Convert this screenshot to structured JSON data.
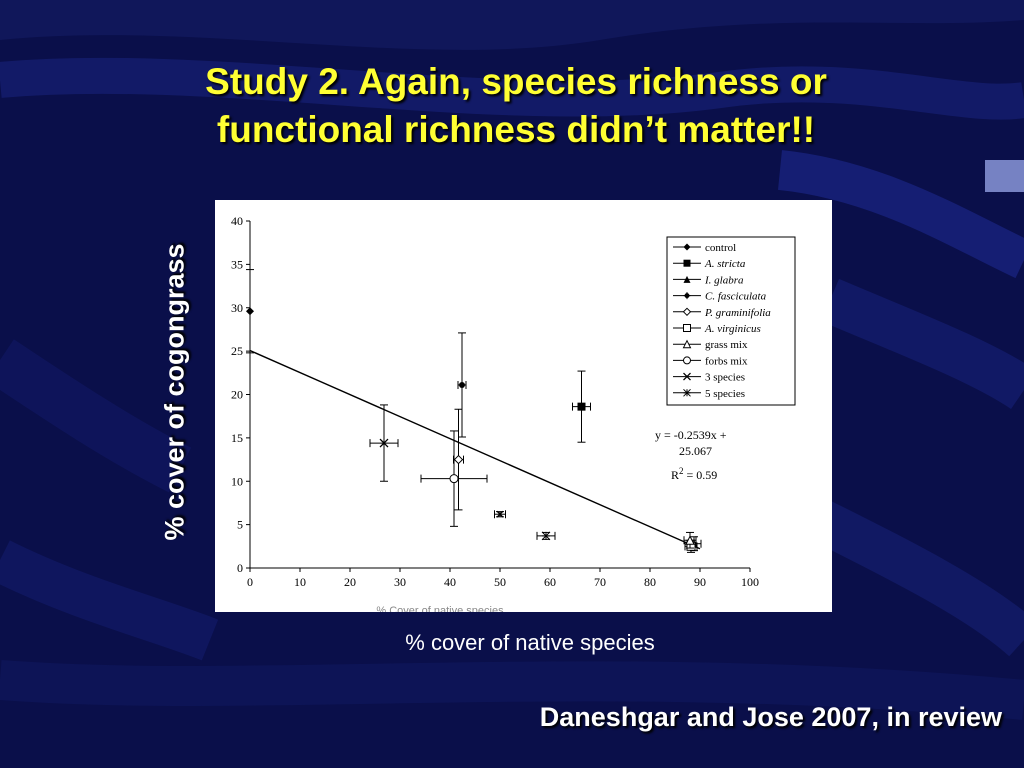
{
  "slide": {
    "title_line1": "Study 2. Again, species richness or",
    "title_line2": "functional richness didn’t matter!!",
    "ylabel": "% cover of cogongrass",
    "xlabel": "% cover of native species",
    "citation": "Daneshgar and Jose 2007, in review"
  },
  "colors": {
    "background": "#0a0f4a",
    "title": "#ffff33",
    "text": "#ffffff",
    "plot_bg": "#ffffff"
  },
  "chart_data": {
    "type": "scatter",
    "xlabel": "% Cover of native species",
    "ylabel": "",
    "xlim": [
      0,
      100
    ],
    "ylim": [
      0,
      40
    ],
    "xticks": [
      0,
      10,
      20,
      30,
      40,
      50,
      60,
      70,
      80,
      90,
      100
    ],
    "yticks": [
      0,
      5,
      10,
      15,
      20,
      25,
      30,
      35,
      40
    ],
    "grid": false,
    "legend_position": "top-right",
    "series": [
      {
        "name": "control",
        "marker": "diamond-filled",
        "x": 0,
        "y": 29.6,
        "xerr": 0,
        "yerr": 4.8
      },
      {
        "name": "A. stricta",
        "italic": true,
        "marker": "square-filled",
        "x": 66.3,
        "y": 18.6,
        "xerr": 1.8,
        "yerr": 4.1
      },
      {
        "name": "I. glabra",
        "italic": true,
        "marker": "triangle-filled",
        "x": 88.8,
        "y": 2.8,
        "xerr": 1.4,
        "yerr": 0.8
      },
      {
        "name": "C. fasciculata",
        "italic": true,
        "marker": "star-filled",
        "x": 42.4,
        "y": 21.1,
        "xerr": 0.8,
        "yerr": 6.0
      },
      {
        "name": "P. graminifolia",
        "italic": true,
        "marker": "diamond-open",
        "x": 41.7,
        "y": 12.5,
        "xerr": 1.0,
        "yerr": 5.8
      },
      {
        "name": "A. virginicus",
        "italic": true,
        "marker": "square-open",
        "x": 88.2,
        "y": 2.5,
        "xerr": 1.2,
        "yerr": 0.7
      },
      {
        "name": "grass mix",
        "marker": "triangle-open",
        "x": 88.0,
        "y": 3.2,
        "xerr": 1.2,
        "yerr": 0.9
      },
      {
        "name": "forbs mix",
        "marker": "circle-open",
        "x": 40.8,
        "y": 10.3,
        "xerr": 6.6,
        "yerr": 5.5
      },
      {
        "name": "3 species",
        "marker": "x",
        "x": 26.8,
        "y": 14.4,
        "xerr": 2.8,
        "yerr": 4.4
      },
      {
        "name": "5 species",
        "marker": "asterisk",
        "x": 59.2,
        "y": 3.7,
        "xerr": 1.8,
        "yerr": 0.4
      },
      {
        "name": "",
        "marker": "x-small",
        "x": 50.0,
        "y": 6.2,
        "xerr": 1.1,
        "yerr": 0.3
      }
    ],
    "trendline": {
      "slope": -0.2539,
      "intercept": 25.067,
      "x_start": 0,
      "x_end": 90,
      "equation_line1": "y = -0.2539x +",
      "equation_line2": "25.067",
      "r2_label": "R",
      "r2_sup": "2",
      "r2_value": " = 0.59"
    }
  }
}
